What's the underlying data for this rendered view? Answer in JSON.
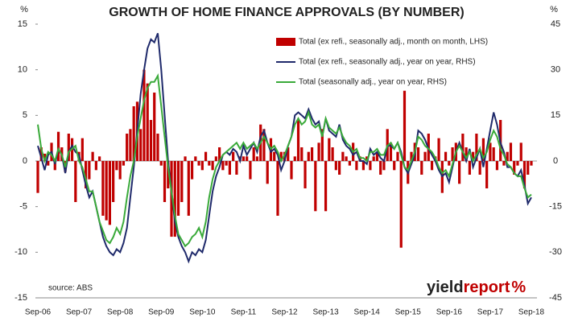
{
  "chart_data": {
    "type": "combo",
    "title": "GROWTH OF HOME FINANCE APPROVALS (BY NUMBER)",
    "y_label": "%",
    "y2_label": "%",
    "source": "source: ABS",
    "logo": [
      "yield",
      "report",
      "%"
    ],
    "categories": [
      "Sep-06",
      null,
      null,
      null,
      null,
      null,
      null,
      null,
      null,
      null,
      null,
      null,
      "Sep-07",
      null,
      null,
      null,
      null,
      null,
      null,
      null,
      null,
      null,
      null,
      null,
      "Sep-08",
      null,
      null,
      null,
      null,
      null,
      null,
      null,
      null,
      null,
      null,
      null,
      "Sep-09",
      null,
      null,
      null,
      null,
      null,
      null,
      null,
      null,
      null,
      null,
      null,
      "Sep-10",
      null,
      null,
      null,
      null,
      null,
      null,
      null,
      null,
      null,
      null,
      null,
      "Sep-11",
      null,
      null,
      null,
      null,
      null,
      null,
      null,
      null,
      null,
      null,
      null,
      "Sep-12",
      null,
      null,
      null,
      null,
      null,
      null,
      null,
      null,
      null,
      null,
      null,
      "Sep-13",
      null,
      null,
      null,
      null,
      null,
      null,
      null,
      null,
      null,
      null,
      null,
      "Sep-14",
      null,
      null,
      null,
      null,
      null,
      null,
      null,
      null,
      null,
      null,
      null,
      "Sep-15",
      null,
      null,
      null,
      null,
      null,
      null,
      null,
      null,
      null,
      null,
      null,
      "Sep-16",
      null,
      null,
      null,
      null,
      null,
      null,
      null,
      null,
      null,
      null,
      null,
      "Sep-17",
      null,
      null,
      null,
      null,
      null,
      null,
      null,
      null,
      null,
      null,
      null,
      "Sep-18"
    ],
    "ylim": [
      -15,
      15
    ],
    "yticks": [
      -15,
      -10,
      -5,
      0,
      5,
      10,
      15
    ],
    "y2lim": [
      -45,
      45
    ],
    "y2ticks": [
      -45,
      -30,
      -15,
      0,
      15,
      30,
      45
    ],
    "legend": "upper right",
    "series": [
      {
        "name": "Total (ex refi., seasonally adj., month on month, LHS)",
        "type": "bar",
        "color": "#c00000",
        "values": [
          -3.5,
          1.5,
          0.8,
          -0.5,
          2.0,
          -1,
          3.2,
          1.5,
          -1.2,
          3.0,
          2.5,
          -4.5,
          1,
          2.5,
          -3,
          -2,
          1,
          -1,
          0.5,
          -6,
          -6.5,
          -7,
          -4.5,
          -1,
          -2,
          -0.5,
          3,
          3.5,
          6,
          6.5,
          3.5,
          10,
          8.5,
          4.5,
          7.5,
          3,
          -0.5,
          -4.5,
          -3,
          -8.3,
          -8.3,
          -6,
          -4.5,
          0.5,
          -6,
          -2,
          0.5,
          -0.5,
          -1,
          1,
          -0.5,
          -1,
          0.5,
          1.5,
          -1,
          -0.5,
          -1.5,
          1,
          -1.5,
          0.5,
          0.5,
          0.5,
          -2,
          1.5,
          0.5,
          4,
          3.5,
          -2.5,
          2.5,
          1,
          -6,
          1,
          1,
          1.5,
          -2,
          0.5,
          4.5,
          1.5,
          -3,
          1,
          1.5,
          -5.5,
          2,
          3.5,
          -5.5,
          2.5,
          1.5,
          -1,
          -1.5,
          1,
          0.5,
          -0.5,
          2,
          -1,
          0.5,
          -1,
          0.5,
          -1,
          0.5,
          1,
          -1.5,
          -1,
          3.5,
          2,
          -1,
          1,
          -9.5,
          7.7,
          -2.5,
          1,
          2,
          1.5,
          -1.5,
          1,
          3,
          -1,
          0.5,
          2.5,
          -3.5,
          1,
          -0.5,
          1.5,
          2,
          -2.5,
          3,
          1.5,
          -1.5,
          1,
          3,
          -1.5,
          2.5,
          -3,
          2,
          1.5,
          -1,
          4.5,
          -0.5,
          1,
          2,
          -1.5,
          -0.5,
          2,
          -3,
          -1.5,
          -0.5
        ]
      },
      {
        "name": "Total (ex refi., seasonally adj., year on year, RHS)",
        "type": "line",
        "axis": "y2",
        "color": "#1f2a6b",
        "values": [
          5,
          1,
          -3,
          2,
          3,
          -1,
          4,
          2,
          -4,
          3,
          5,
          3,
          2,
          -3,
          -8,
          -12,
          -10,
          -15,
          -20,
          -25,
          -28,
          -30,
          -31,
          -29,
          -30,
          -27,
          -22,
          -12,
          -2,
          10,
          22,
          30,
          37,
          40,
          39,
          42,
          30,
          15,
          0,
          -10,
          -20,
          -25,
          -28,
          -30,
          -33,
          -30,
          -31,
          -29,
          -30,
          -26,
          -18,
          -10,
          -5,
          -2,
          2,
          3,
          2,
          4,
          3,
          0,
          5,
          2,
          4,
          6,
          3,
          8,
          10,
          6,
          3,
          4,
          2,
          -3,
          0,
          5,
          8,
          15,
          16,
          15,
          14,
          17,
          14,
          12,
          13,
          8,
          14,
          10,
          9,
          8,
          12,
          7,
          5,
          4,
          2,
          3,
          0,
          0,
          -1,
          4,
          2,
          3,
          1,
          0,
          5,
          5,
          4,
          6,
          3,
          -2,
          -4,
          -1,
          2,
          10,
          9,
          7,
          4,
          2,
          0,
          -3,
          -5,
          -4,
          -7,
          -2,
          3,
          6,
          3,
          0,
          4,
          -2,
          1,
          4,
          -2,
          4,
          10,
          16,
          12,
          6,
          3,
          -2,
          -2,
          -4,
          -5,
          -3,
          -8,
          -14,
          -12
        ]
      },
      {
        "name": "Total (seasonally adj., year on year, RHS)",
        "type": "line",
        "axis": "y2",
        "color": "#3aaa3a",
        "values": [
          12,
          4,
          0,
          3,
          2,
          0,
          4,
          2,
          -2,
          3,
          4,
          5,
          0,
          -2,
          -6,
          -10,
          -10,
          -15,
          -20,
          -23,
          -26,
          -27,
          -25,
          -22,
          -24,
          -20,
          -12,
          -5,
          0,
          8,
          14,
          20,
          24,
          26,
          26,
          28,
          18,
          8,
          -2,
          -10,
          -18,
          -24,
          -26,
          -28,
          -27,
          -25,
          -24,
          -22,
          -25,
          -20,
          -12,
          -6,
          -2,
          0,
          2,
          3,
          4,
          5,
          6,
          4,
          6,
          4,
          5,
          6,
          4,
          6,
          8,
          6,
          4,
          5,
          3,
          0,
          2,
          5,
          8,
          12,
          14,
          12,
          13,
          16,
          12,
          11,
          12,
          8,
          14,
          11,
          10,
          9,
          11,
          8,
          6,
          5,
          3,
          4,
          1,
          1,
          0,
          3,
          3,
          4,
          2,
          2,
          5,
          6,
          4,
          6,
          2,
          -2,
          -3,
          0,
          3,
          8,
          7,
          5,
          4,
          3,
          1,
          -2,
          -4,
          -3,
          -5,
          -1,
          3,
          5,
          3,
          1,
          3,
          0,
          2,
          4,
          1,
          3,
          7,
          10,
          8,
          4,
          2,
          -1,
          -2,
          -4,
          -5,
          -5,
          -9,
          -12,
          -11
        ]
      }
    ]
  }
}
